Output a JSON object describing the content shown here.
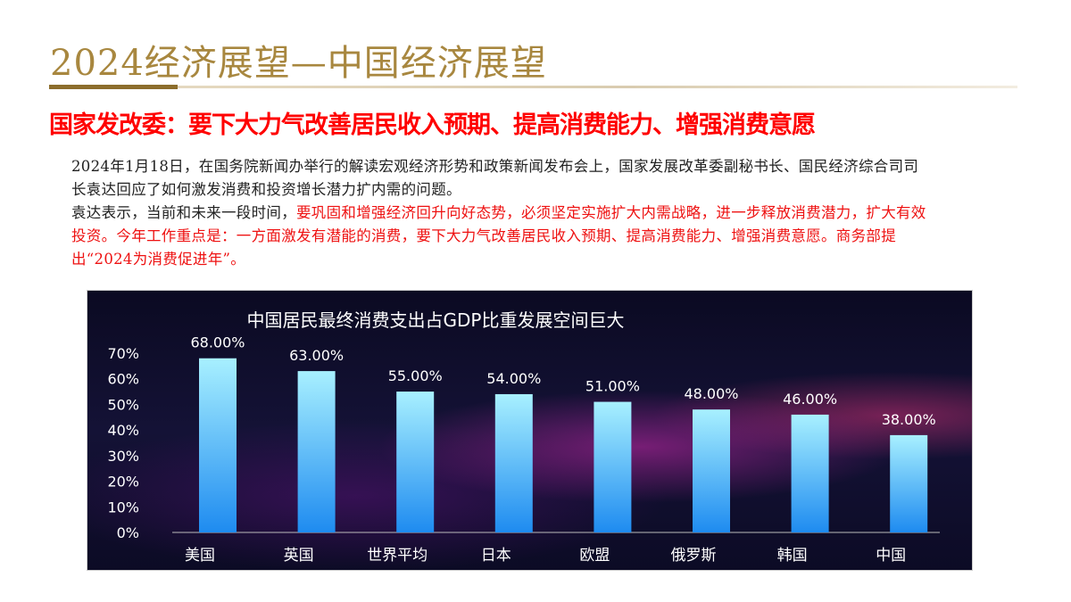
{
  "header": {
    "title": "2024经济展望—中国经济展望",
    "subtitle": "国家发改委：要下大力气改善居民收入预期、提高消费能力、增强消费意愿"
  },
  "body": {
    "p1": "2024年1月18日，在国务院新闻办举行的解读宏观经济形势和政策新闻发布会上，国家发展改革委副秘书长、国民经济综合司司长袁达回应了如何激发消费和投资增长潜力扩内需的问题。",
    "p2_black": "袁达表示，当前和未来一段时间，",
    "p2_red": "要巩固和增强经济回升向好态势，必须坚定实施扩大内需战略，进一步释放消费潜力，扩大有效投资。今年工作重点是：一方面激发有潜能的消费，要下大力气改善居民收入预期、提高消费能力、增强消费意愿。商务部提出“2024为消费促进年”。"
  },
  "chart_data": {
    "type": "bar",
    "title": "中国居民最终消费支出占GDP比重发展空间巨大",
    "categories": [
      "美国",
      "英国",
      "世界平均",
      "日本",
      "欧盟",
      "俄罗斯",
      "韩国",
      "中国"
    ],
    "values": [
      68,
      63,
      55,
      54,
      51,
      48,
      46,
      38
    ],
    "value_labels": [
      "68.00%",
      "63.00%",
      "55.00%",
      "54.00%",
      "51.00%",
      "48.00%",
      "46.00%",
      "38.00%"
    ],
    "yticks": [
      "0%",
      "10%",
      "20%",
      "30%",
      "40%",
      "50%",
      "60%",
      "70%"
    ],
    "ylim": [
      0,
      70
    ],
    "xlabel": "",
    "ylabel": "",
    "grid": false,
    "colors": {
      "bar_top": "#a8f0ff",
      "bar_bottom": "#1e8bf0",
      "text": "#ffffff"
    }
  }
}
